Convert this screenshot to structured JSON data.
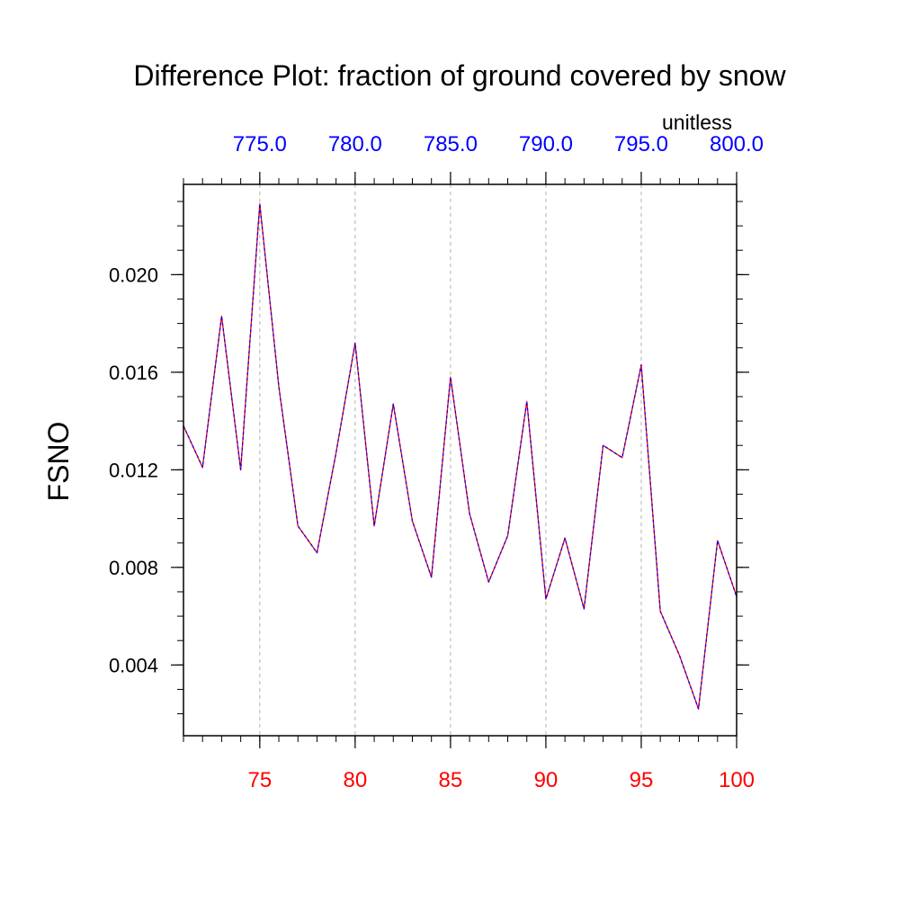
{
  "chart_data": {
    "type": "line",
    "title": "Difference Plot: fraction of ground covered by snow",
    "ylabel": "FSNO",
    "units": "unitless",
    "xlim": [
      71,
      100
    ],
    "ylim": [
      0.0011,
      0.0237
    ],
    "x_ticks_bottom": [
      75,
      80,
      85,
      90,
      95,
      100
    ],
    "x_tick_labels_bottom": [
      "75",
      "80",
      "85",
      "90",
      "95",
      "100"
    ],
    "x_ticks_top": [
      75,
      80,
      85,
      90,
      95,
      100
    ],
    "x_tick_labels_top": [
      "775.0",
      "780.0",
      "785.0",
      "790.0",
      "795.0",
      "800.0"
    ],
    "y_ticks": [
      0.004,
      0.008,
      0.012,
      0.016,
      0.02
    ],
    "y_tick_labels": [
      "0.004",
      "0.008",
      "0.012",
      "0.016",
      "0.020"
    ],
    "grid": "vertical dashed at major x ticks",
    "colors": {
      "bottom_axis_labels": "#ff0000",
      "top_axis_labels": "#0000ff",
      "series_a": "#ff0000",
      "series_b": "#0000ff",
      "grid": "#b0b0b0"
    },
    "x": [
      71,
      72,
      73,
      74,
      75,
      76,
      77,
      78,
      79,
      80,
      81,
      82,
      83,
      84,
      85,
      86,
      87,
      88,
      89,
      90,
      91,
      92,
      93,
      94,
      95,
      96,
      97,
      98,
      99,
      100
    ],
    "series": [
      {
        "values": [
          0.0138,
          0.0121,
          0.0183,
          0.012,
          0.0229,
          0.0154,
          0.0097,
          0.0086,
          0.0127,
          0.0172,
          0.0097,
          0.0147,
          0.0099,
          0.0076,
          0.0158,
          0.0102,
          0.0074,
          0.0093,
          0.0148,
          0.0067,
          0.0092,
          0.0063,
          0.013,
          0.0125,
          0.0163,
          0.0062,
          0.0044,
          0.0022,
          0.0091,
          0.0068
        ]
      },
      {
        "values": [
          0.0138,
          0.0121,
          0.0183,
          0.012,
          0.0229,
          0.0154,
          0.0097,
          0.0086,
          0.0127,
          0.0172,
          0.0097,
          0.0147,
          0.0099,
          0.0076,
          0.0158,
          0.0102,
          0.0074,
          0.0093,
          0.0148,
          0.0067,
          0.0092,
          0.0063,
          0.013,
          0.0125,
          0.0163,
          0.0062,
          0.0044,
          0.0022,
          0.0091,
          0.0068
        ]
      }
    ]
  }
}
